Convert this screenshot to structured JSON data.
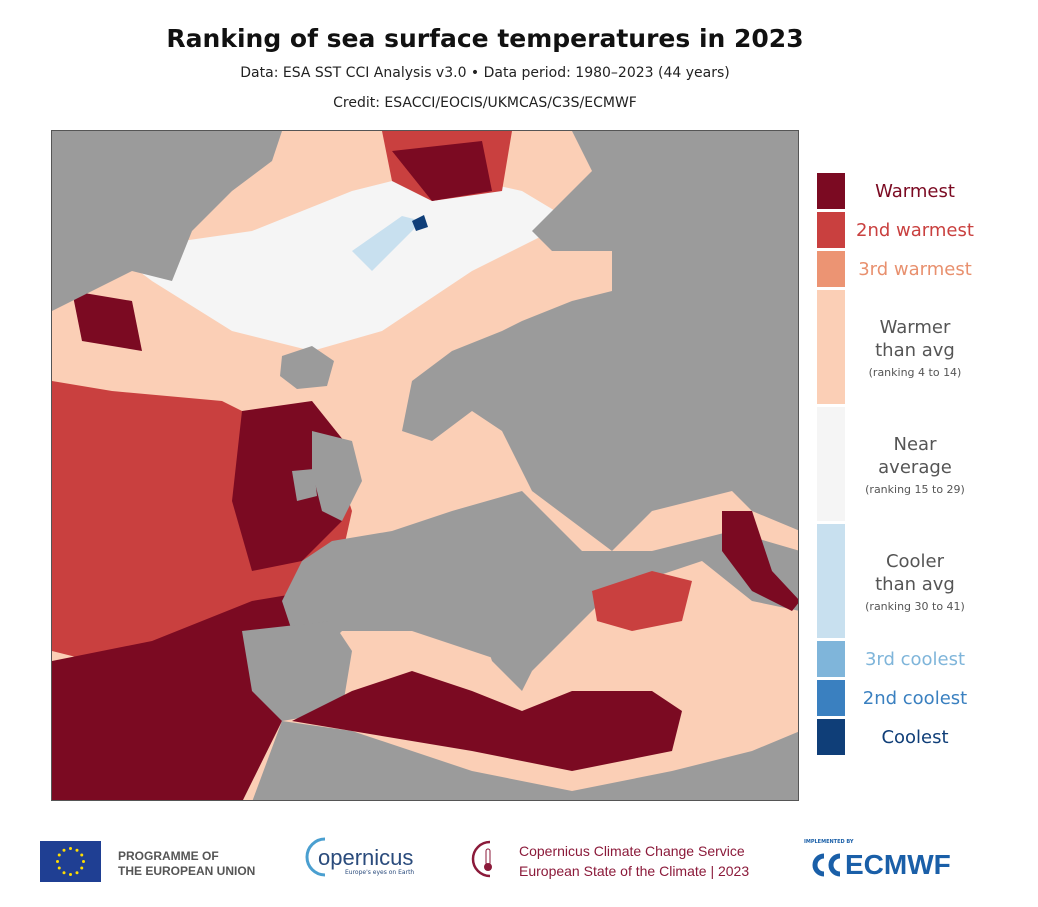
{
  "header": {
    "title": "Ranking of sea surface temperatures in 2023",
    "data_line": "Data: ESA SST CCI Analysis v3.0 • Data period: 1980–2023 (44 years)",
    "credit": "Credit: ESACCI/EOCIS/UKMCAS/C3S/ECMWF"
  },
  "map": {
    "land_color": "#9b9b9b",
    "region": "Europe, North Atlantic, Arctic, Mediterranean"
  },
  "legend": [
    {
      "label": "Warmest",
      "sub": "",
      "color": "#7b0a22",
      "text_color": "#7b0a22"
    },
    {
      "label": "2nd warmest",
      "sub": "",
      "color": "#c9403f",
      "text_color": "#c9403f"
    },
    {
      "label": "3rd warmest",
      "sub": "",
      "color": "#ec9473",
      "text_color": "#e8906e"
    },
    {
      "label": "Warmer\nthan avg",
      "sub": "(ranking 4 to 14)",
      "color": "#fbcfb6",
      "text_color": "#555555"
    },
    {
      "label": "Near\naverage",
      "sub": "(ranking 15 to 29)",
      "color": "#f5f5f5",
      "text_color": "#555555"
    },
    {
      "label": "Cooler\nthan avg",
      "sub": "(ranking 30 to 41)",
      "color": "#c8e0ef",
      "text_color": "#555555"
    },
    {
      "label": "3rd coolest",
      "sub": "",
      "color": "#7fb5da",
      "text_color": "#7fb5da"
    },
    {
      "label": "2nd coolest",
      "sub": "",
      "color": "#3a80c0",
      "text_color": "#3a80c0"
    },
    {
      "label": "Coolest",
      "sub": "",
      "color": "#0f3e78",
      "text_color": "#0f3e78"
    }
  ],
  "footer": {
    "eu_line1": "PROGRAMME OF",
    "eu_line2": "THE EUROPEAN UNION",
    "copernicus": "opernicus",
    "copernicus_tag": "Europe's eyes on Earth",
    "c3s_line1": "Copernicus Climate Change Service",
    "c3s_line2": "European State of the Climate | 2023",
    "ecmwf_small": "IMPLEMENTED BY",
    "ecmwf": "ECMWF"
  }
}
